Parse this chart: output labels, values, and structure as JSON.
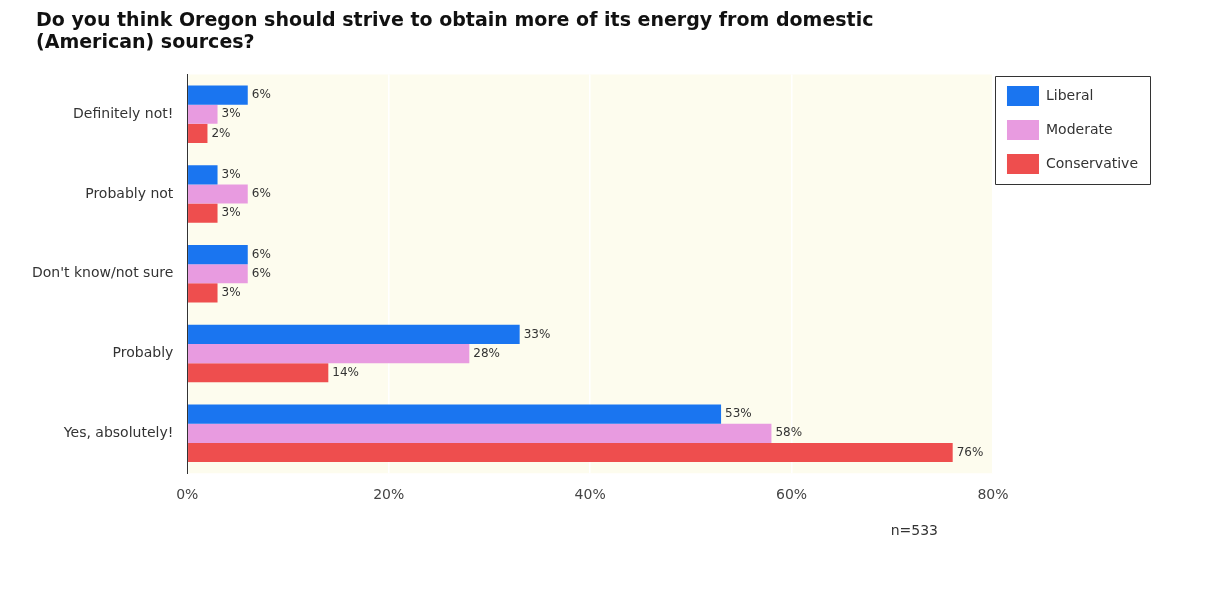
{
  "chart_data": {
    "type": "bar",
    "orientation": "horizontal",
    "title": "Do you think Oregon should strive to obtain more of its energy from domestic (American) sources?",
    "categories": [
      "Definitely not!",
      "Probably not",
      "Don't know/not sure",
      "Probably",
      "Yes, absolutely!"
    ],
    "series": [
      {
        "name": "Liberal",
        "color": "#1a75f0",
        "values": [
          6,
          3,
          6,
          33,
          53
        ],
        "value_labels": [
          "6%",
          "3%",
          "6%",
          "33%",
          "53%"
        ]
      },
      {
        "name": "Moderate",
        "color": "#e89be0",
        "values": [
          3,
          6,
          6,
          28,
          58
        ],
        "value_labels": [
          "3%",
          "6%",
          "6%",
          "28%",
          "58%"
        ]
      },
      {
        "name": "Conservative",
        "color": "#ee4e4e",
        "values": [
          2,
          3,
          3,
          14,
          76
        ],
        "value_labels": [
          "2%",
          "3%",
          "3%",
          "14%",
          "76%"
        ]
      }
    ],
    "xlim": [
      0,
      80
    ],
    "xticks": [
      {
        "value": 0,
        "label": "0%"
      },
      {
        "value": 20,
        "label": "20%"
      },
      {
        "value": 40,
        "label": "40%"
      },
      {
        "value": 60,
        "label": "60%"
      },
      {
        "value": 80,
        "label": "80%"
      }
    ],
    "grid": "x",
    "legend": "top right",
    "annotations": [
      "n=533"
    ]
  }
}
